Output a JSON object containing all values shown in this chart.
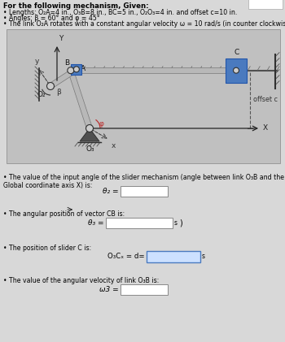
{
  "title_given": "For the following mechanism, Given:",
  "bullet1": "Lengths: O₂A=4 in., O₃B=8 in., BC=5 in., O₂O₃=4 in. and offset c=10 in.",
  "bullet2": "Angles: β = 60° and φ = 45°",
  "bullet3": "The link O₂A rotates with a constant angular velocity ω = 10 rad/s (in counter clockwise sense)",
  "q1_bullet": "The value of the input angle of the slider mechanism (angle between link O₃B and the Global coordinate axis X) is:",
  "q1_label": "θ₂ =",
  "q2_bullet": "The angular position of vector CB is:",
  "q2_label": "θ₃ =",
  "q3_bullet": "The position of slider C is:",
  "q3_label": "O₃Cₓ = d=",
  "q4_bullet": "The value of the angular velocity of link O₃B is:",
  "q4_label": "ω3 =",
  "bg_color": "#c8c8c8",
  "page_bg": "#d8d8d8",
  "slider_color": "#4a7abf",
  "offset_label": "offset c"
}
